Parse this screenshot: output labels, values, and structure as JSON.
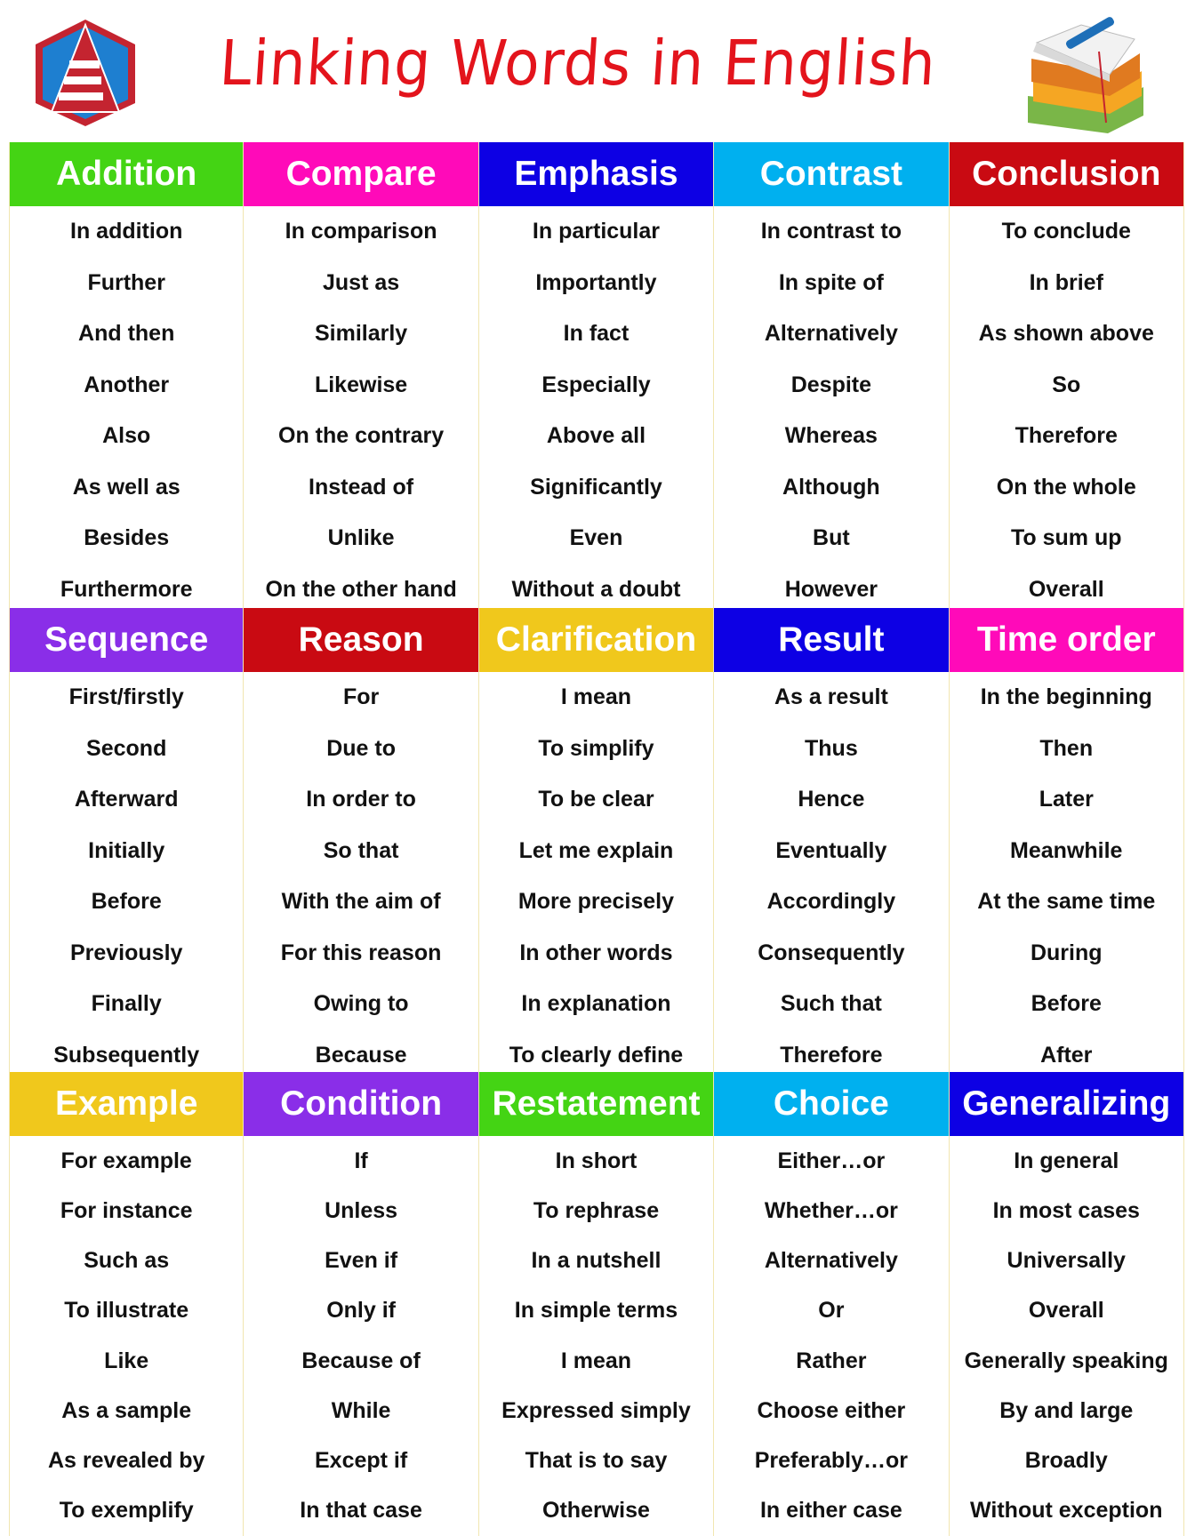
{
  "title": "Linking Words in English",
  "logo_icon": "e-hexagon-logo-icon",
  "books_icon": "book-stack-icon",
  "sections": [
    {
      "categories": [
        {
          "name": "Addition",
          "color": "#44d414",
          "items": [
            "In addition",
            "Further",
            "And then",
            "Another",
            "Also",
            "As well as",
            "Besides",
            "Furthermore"
          ]
        },
        {
          "name": "Compare",
          "color": "#ff0ab9",
          "items": [
            "In comparison",
            "Just as",
            "Similarly",
            "Likewise",
            "On the contrary",
            "Instead of",
            "Unlike",
            "On the other hand"
          ]
        },
        {
          "name": "Emphasis",
          "color": "#0d00e4",
          "items": [
            "In particular",
            "Importantly",
            "In fact",
            "Especially",
            "Above all",
            "Significantly",
            "Even",
            "Without a doubt"
          ]
        },
        {
          "name": "Contrast",
          "color": "#00b0ef",
          "items": [
            "In contrast to",
            "In spite of",
            "Alternatively",
            "Despite",
            "Whereas",
            "Although",
            "But",
            "However"
          ]
        },
        {
          "name": "Conclusion",
          "color": "#c90a12",
          "items": [
            "To conclude",
            "In brief",
            "As shown above",
            "So",
            "Therefore",
            "On the whole",
            "To sum up",
            "Overall"
          ]
        }
      ]
    },
    {
      "categories": [
        {
          "name": "Sequence",
          "color": "#8a2ee8",
          "items": [
            "First/firstly",
            "Second",
            "Afterward",
            "Initially",
            "Before",
            "Previously",
            "Finally",
            "Subsequently"
          ]
        },
        {
          "name": "Reason",
          "color": "#c90a12",
          "items": [
            "For",
            "Due to",
            "In order to",
            "So that",
            "With the aim of",
            "For this reason",
            "Owing to",
            "Because"
          ]
        },
        {
          "name": "Clarification",
          "color": "#f0c81c",
          "items": [
            "I mean",
            "To simplify",
            "To be clear",
            "Let me explain",
            "More precisely",
            "In other words",
            "In explanation",
            "To clearly define"
          ]
        },
        {
          "name": "Result",
          "color": "#0d00e4",
          "items": [
            "As a result",
            "Thus",
            "Hence",
            "Eventually",
            "Accordingly",
            "Consequently",
            "Such that",
            "Therefore"
          ]
        },
        {
          "name": "Time order",
          "color": "#ff0ab9",
          "items": [
            "In the beginning",
            "Then",
            "Later",
            "Meanwhile",
            "At the same time",
            "During",
            "Before",
            "After"
          ]
        }
      ]
    },
    {
      "categories": [
        {
          "name": "Example",
          "color": "#f0c81c",
          "items": [
            "For example",
            "For instance",
            "Such as",
            "To illustrate",
            "Like",
            "As a sample",
            "As revealed by",
            "To exemplify"
          ]
        },
        {
          "name": "Condition",
          "color": "#8a2ee8",
          "items": [
            "If",
            "Unless",
            "Even if",
            "Only if",
            "Because of",
            "While",
            "Except if",
            "In that case"
          ]
        },
        {
          "name": "Restatement",
          "color": "#44d414",
          "items": [
            "In short",
            "To rephrase",
            "In a nutshell",
            "In simple terms",
            "I mean",
            "Expressed simply",
            "That is to say",
            "Otherwise"
          ]
        },
        {
          "name": "Choice",
          "color": "#00b0ef",
          "items": [
            "Either…or",
            "Whether…or",
            "Alternatively",
            "Or",
            "Rather",
            "Choose either",
            "Preferably…or",
            "In either case"
          ]
        },
        {
          "name": "Generalizing",
          "color": "#0d00e4",
          "items": [
            "In general",
            "In most cases",
            "Universally",
            "Overall",
            "Generally speaking",
            "By and large",
            "Broadly",
            "Without exception"
          ]
        }
      ]
    }
  ]
}
